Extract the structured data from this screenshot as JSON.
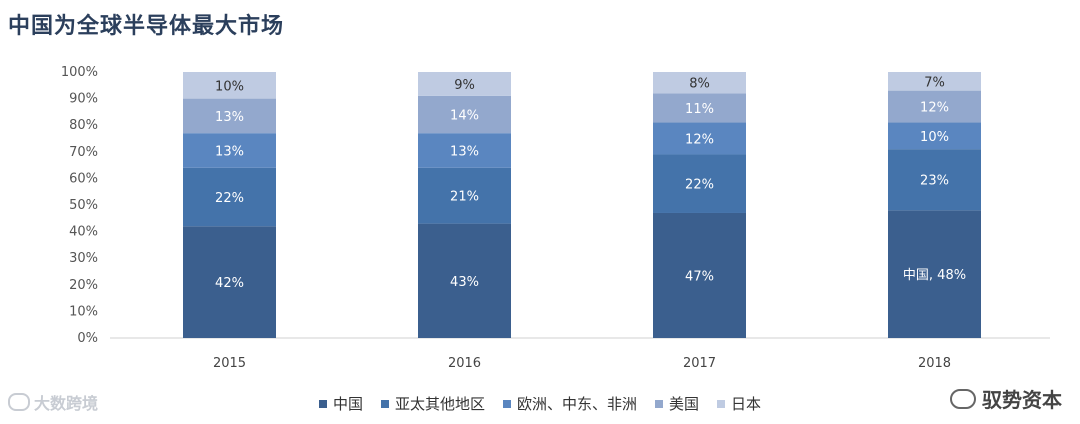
{
  "title": "中国为全球半导体最大市场",
  "chart_data": {
    "type": "bar",
    "stacked": true,
    "categories": [
      "2015",
      "2016",
      "2017",
      "2018"
    ],
    "yticks": [
      "0%",
      "10%",
      "20%",
      "30%",
      "40%",
      "50%",
      "60%",
      "70%",
      "80%",
      "90%",
      "100%"
    ],
    "ylim": [
      0,
      100
    ],
    "series": [
      {
        "name": "中国",
        "values": [
          42,
          43,
          47,
          48
        ],
        "labels": [
          "42%",
          "43%",
          "47%",
          "中国, 48%"
        ],
        "color": "#3b5f8e"
      },
      {
        "name": "亚太其他地区",
        "values": [
          22,
          21,
          22,
          23
        ],
        "labels": [
          "22%",
          "21%",
          "22%",
          "23%"
        ],
        "color": "#4473aa"
      },
      {
        "name": "欧洲、中东、非洲",
        "values": [
          13,
          13,
          12,
          10
        ],
        "labels": [
          "13%",
          "13%",
          "12%",
          "10%"
        ],
        "color": "#5a86c0"
      },
      {
        "name": "美国",
        "values": [
          13,
          14,
          11,
          12
        ],
        "labels": [
          "13%",
          "14%",
          "11%",
          "12%"
        ],
        "color": "#93a8cd"
      },
      {
        "name": "日本",
        "values": [
          10,
          9,
          8,
          7
        ],
        "labels": [
          "10%",
          "9%",
          "8%",
          "7%"
        ],
        "color": "#bfcbe2"
      }
    ],
    "legend_position": "bottom"
  },
  "watermarks": {
    "left": "大数跨境",
    "right": "驭势资本"
  }
}
